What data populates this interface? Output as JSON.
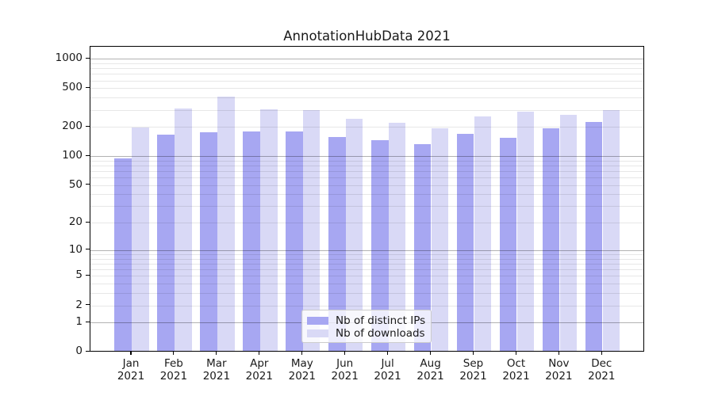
{
  "chart_data": {
    "type": "bar",
    "title": "AnnotationHubData 2021",
    "categories": [
      "Jan 2021",
      "Feb 2021",
      "Mar 2021",
      "Apr 2021",
      "May 2021",
      "Jun 2021",
      "Jul 2021",
      "Aug 2021",
      "Sep 2021",
      "Oct 2021",
      "Nov 2021",
      "Dec 2021"
    ],
    "series": [
      {
        "name": "Nb of distinct IPs",
        "color": "#a7a7f2",
        "values": [
          92,
          162,
          172,
          176,
          176,
          153,
          144,
          129,
          167,
          152,
          190,
          221
        ]
      },
      {
        "name": "Nb of downloads",
        "color": "#d9d9f6",
        "values": [
          194,
          300,
          397,
          297,
          293,
          238,
          215,
          190,
          250,
          282,
          261,
          293
        ]
      }
    ],
    "xlabel": "",
    "ylabel": "",
    "yscale": "log1p",
    "ylim": [
      0,
      1330
    ],
    "y_tick_values": [
      0,
      1,
      2,
      5,
      10,
      20,
      50,
      100,
      200,
      500,
      1000
    ],
    "y_tick_labels": [
      "0",
      "1",
      "2",
      "5",
      "10",
      "20",
      "50",
      "100",
      "200",
      "500",
      "1000"
    ],
    "major_grid_values": [
      1,
      10,
      100,
      1000
    ],
    "minor_grid_values": [
      2,
      3,
      4,
      5,
      6,
      7,
      8,
      9,
      20,
      30,
      40,
      50,
      60,
      70,
      80,
      90,
      200,
      300,
      400,
      500,
      600,
      700,
      800,
      900
    ],
    "grid": true,
    "legend_position": "lower center",
    "colors": {
      "background": "#ffffff",
      "spine": "#000000",
      "text": "#1a1a1a",
      "major_grid": "rgba(0,0,0,0.30)",
      "minor_grid": "rgba(0,0,0,0.095)"
    }
  }
}
